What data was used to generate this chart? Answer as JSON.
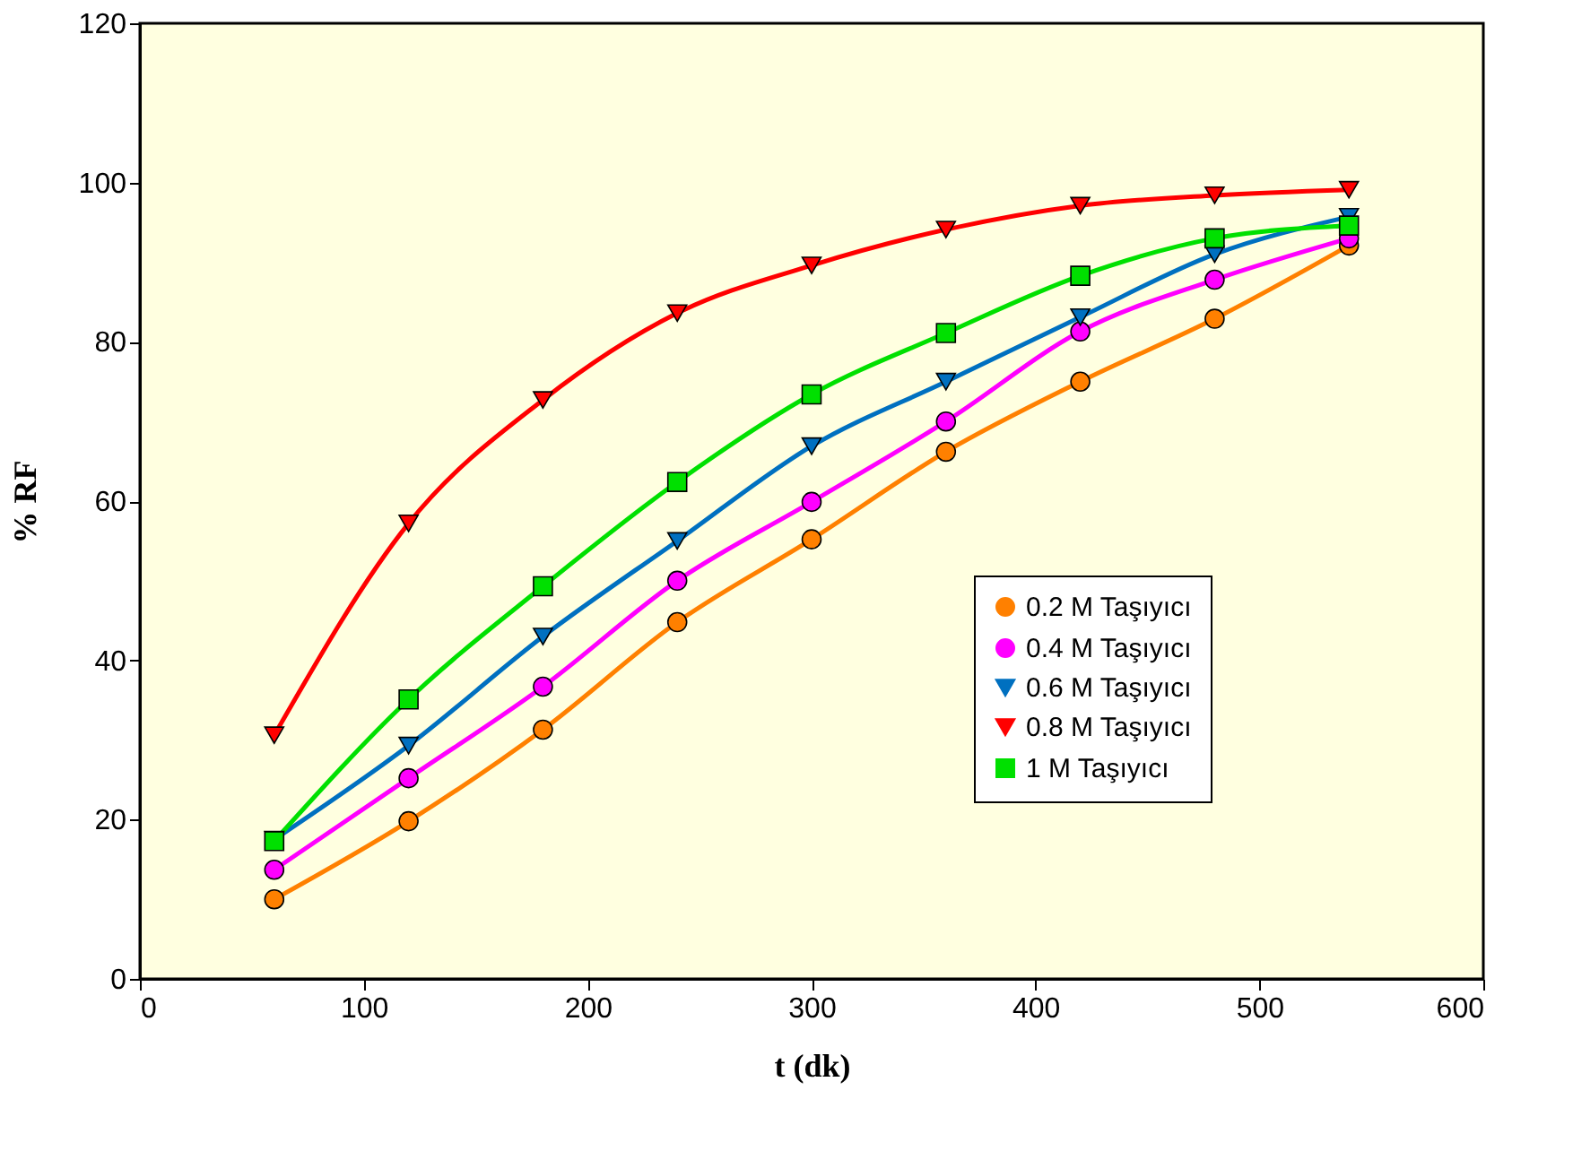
{
  "chart_data": {
    "type": "line",
    "xlabel": "t (dk)",
    "ylabel": "% RF",
    "x": [
      60,
      120,
      180,
      240,
      300,
      360,
      420,
      480,
      540
    ],
    "xlim": [
      0,
      600
    ],
    "xticks": [
      0,
      100,
      200,
      300,
      400,
      500,
      600
    ],
    "ylim": [
      0,
      120
    ],
    "yticks": [
      0,
      20,
      40,
      60,
      80,
      100,
      120
    ],
    "grid": false,
    "legend": "bottom right",
    "line_style": "solid",
    "series": [
      {
        "name": "0.2 M Taşıyıcı",
        "color": "#ff8000",
        "marker": "circle",
        "values": [
          10,
          19.8,
          31.3,
          44.8,
          55.2,
          66.2,
          75,
          82.9,
          92.1
        ]
      },
      {
        "name": "0.4 M Taşıyıcı",
        "color": "#ff00ff",
        "marker": "circle",
        "values": [
          13.7,
          25.2,
          36.7,
          50,
          59.9,
          70,
          81.3,
          87.8,
          93
        ]
      },
      {
        "name": "0.6 M Taşıyıcı",
        "color": "#0070c0",
        "marker": "triangle-down",
        "values": [
          17.5,
          29.3,
          43,
          55,
          66.9,
          75,
          83.1,
          91,
          95.7
        ]
      },
      {
        "name": "0.8 M Taşıyıcı",
        "color": "#ff0000",
        "marker": "triangle-down",
        "values": [
          30.6,
          57.2,
          72.7,
          83.6,
          89.6,
          94.1,
          97.1,
          98.4,
          99.1
        ]
      },
      {
        "name": "1 M Taşıyıcı",
        "color": "#00e000",
        "marker": "square",
        "values": [
          17.3,
          35.1,
          49.3,
          62.4,
          73.4,
          81.1,
          88.3,
          93,
          94.6
        ]
      }
    ]
  }
}
